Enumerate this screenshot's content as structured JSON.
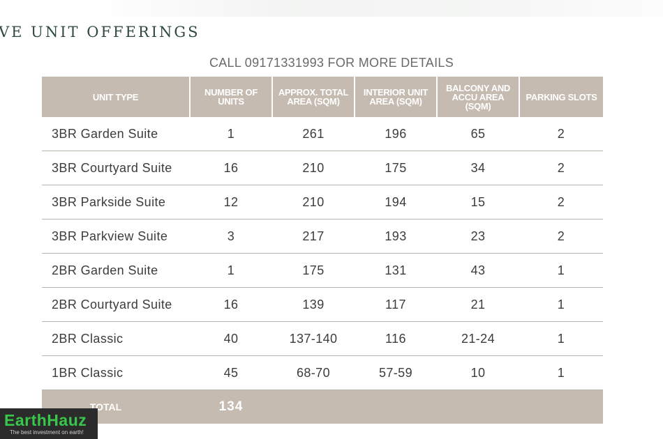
{
  "heading": "VE UNIT OFFERINGS",
  "call_line": "CALL 09171331993 FOR MORE DETAILS",
  "table": {
    "headers": [
      "UNIT TYPE",
      "NUMBER OF UNITS",
      "APPROX. TOTAL AREA (SQM)",
      "INTERIOR UNIT AREA (SQM)",
      "BALCONY AND ACCU AREA (SQM)",
      "PARKING SLOTS"
    ],
    "rows": [
      [
        "3BR Garden Suite",
        "1",
        "261",
        "196",
        "65",
        "2"
      ],
      [
        "3BR Courtyard Suite",
        "16",
        "210",
        "175",
        "34",
        "2"
      ],
      [
        "3BR Parkside Suite",
        "12",
        "210",
        "194",
        "15",
        "2"
      ],
      [
        "3BR Parkview Suite",
        "3",
        "217",
        "193",
        "23",
        "2"
      ],
      [
        "2BR Garden Suite",
        "1",
        "175",
        "131",
        "43",
        "1"
      ],
      [
        "2BR Courtyard Suite",
        "16",
        "139",
        "117",
        "21",
        "1"
      ],
      [
        "2BR Classic",
        "40",
        "137-140",
        "116",
        "21-24",
        "1"
      ],
      [
        "1BR Classic",
        "45",
        "68-70",
        "57-59",
        "10",
        "1"
      ]
    ],
    "total_label": "TOTAL",
    "total_value": "134"
  },
  "logo": {
    "name": "EarthHauz",
    "tagline": "The best investment on earth!"
  },
  "colors": {
    "header_bg": "#c5bbb0",
    "heading_green": "#2f4a3c",
    "logo_green": "#38c74a",
    "logo_bg": "#2b2b2b"
  }
}
